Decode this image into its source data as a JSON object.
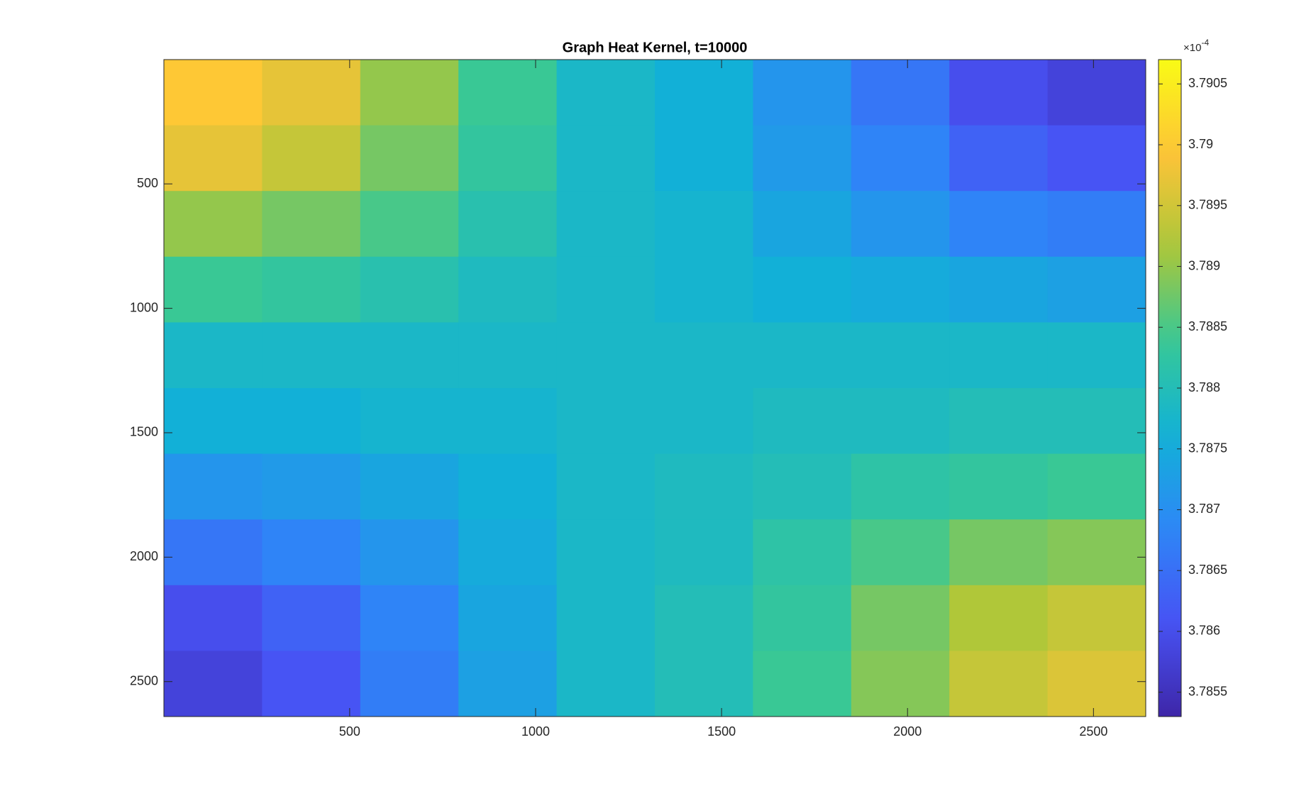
{
  "chart_data": {
    "type": "heatmap",
    "title": "Graph Heat Kernel, t=10000",
    "colormap": "parula",
    "xbins": [
      0.5,
      264.5,
      528.5,
      792.5,
      1056.5,
      1320.5,
      1584.5,
      1848.5,
      2112.5,
      2376.5,
      2640.5
    ],
    "ybins": [
      0.5,
      264.5,
      528.5,
      792.5,
      1056.5,
      1320.5,
      1584.5,
      1848.5,
      2112.5,
      2376.5,
      2640.5
    ],
    "xlim": [
      0.5,
      2640.5
    ],
    "ylim": [
      0.5,
      2640.5
    ],
    "y_reversed": true,
    "xticks": [
      500,
      1000,
      1500,
      2000,
      2500
    ],
    "yticks": [
      500,
      1000,
      1500,
      2000,
      2500
    ],
    "z": [
      [
        3.79,
        3.7897,
        3.789,
        3.7884,
        3.7878,
        3.7876,
        3.7871,
        3.7866,
        3.786,
        3.7858
      ],
      [
        3.7897,
        3.7894,
        3.7888,
        3.7883,
        3.7878,
        3.7876,
        3.7872,
        3.7868,
        3.7863,
        3.7861
      ],
      [
        3.789,
        3.7888,
        3.7885,
        3.7881,
        3.7878,
        3.7877,
        3.7874,
        3.7871,
        3.7868,
        3.7867
      ],
      [
        3.7884,
        3.7883,
        3.7881,
        3.7879,
        3.7878,
        3.7877,
        3.7876,
        3.7875,
        3.7874,
        3.7873
      ],
      [
        3.7878,
        3.7878,
        3.7878,
        3.7878,
        3.7878,
        3.7878,
        3.7878,
        3.7878,
        3.7878,
        3.7878
      ],
      [
        3.7876,
        3.7876,
        3.7877,
        3.7877,
        3.7878,
        3.7878,
        3.7879,
        3.7879,
        3.788,
        3.788
      ],
      [
        3.7871,
        3.7872,
        3.7874,
        3.7876,
        3.7878,
        3.7879,
        3.788,
        3.7882,
        3.7883,
        3.7884
      ],
      [
        3.7866,
        3.7868,
        3.7871,
        3.7875,
        3.7878,
        3.7879,
        3.7882,
        3.7885,
        3.7888,
        3.7889
      ],
      [
        3.786,
        3.7863,
        3.7868,
        3.7874,
        3.7878,
        3.788,
        3.7883,
        3.7888,
        3.7892,
        3.7894
      ],
      [
        3.7858,
        3.7861,
        3.7867,
        3.7873,
        3.7878,
        3.788,
        3.7884,
        3.7889,
        3.7894,
        3.7896
      ]
    ],
    "clim": [
      3.7853,
      3.7907
    ],
    "colorbar_ticks": [
      3.7855,
      3.786,
      3.7865,
      3.787,
      3.7875,
      3.788,
      3.7885,
      3.789,
      3.7895,
      3.79,
      3.7905
    ],
    "colorbar_multiplier": "×10",
    "colorbar_exponent": "-4"
  }
}
